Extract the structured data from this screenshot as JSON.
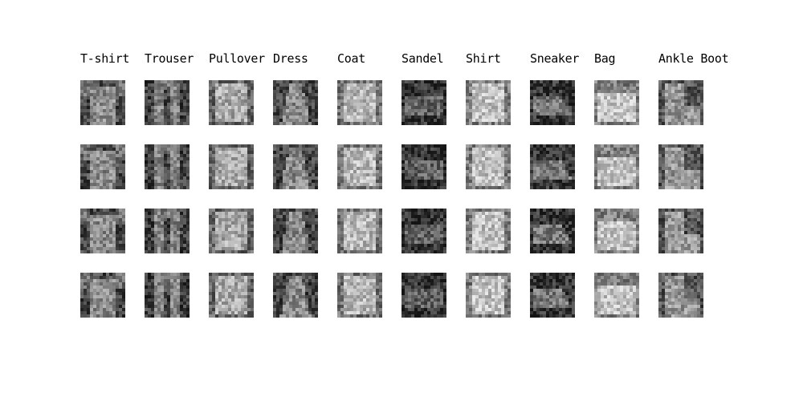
{
  "figure": {
    "columns": [
      {
        "label": "T-shirt",
        "tone": "#6f6f6f",
        "shape": "tee"
      },
      {
        "label": "Trouser",
        "tone": "#686868",
        "shape": "trouser"
      },
      {
        "label": "Pullover",
        "tone": "#8c8c8c",
        "shape": "sweater"
      },
      {
        "label": "Dress",
        "tone": "#6c6c6c",
        "shape": "dress"
      },
      {
        "label": "Coat",
        "tone": "#9a9a9a",
        "shape": "sweater"
      },
      {
        "label": "Sandel",
        "tone": "#5a5a5a",
        "shape": "sandal"
      },
      {
        "label": "Shirt",
        "tone": "#a4a4a4",
        "shape": "sweater"
      },
      {
        "label": "Sneaker",
        "tone": "#5c5c5c",
        "shape": "sneaker"
      },
      {
        "label": "Bag",
        "tone": "#a8a8a8",
        "shape": "bag"
      },
      {
        "label": "Ankle Boot",
        "tone": "#7a7a7a",
        "shape": "boot"
      }
    ],
    "rows": 4
  }
}
